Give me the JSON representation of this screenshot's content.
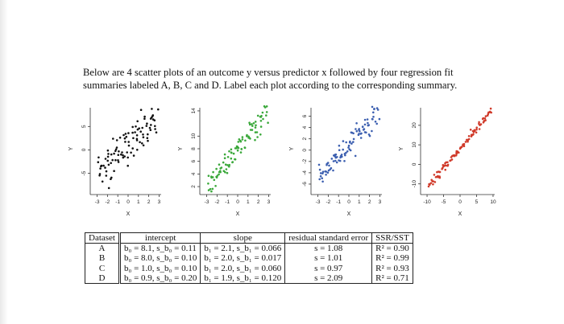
{
  "prompt": {
    "line1": "Below are 4 scatter plots of an outcome y versus predictor x followed by four regression fit",
    "line2": "summaries labeled A, B, C and D. Label each plot according to the corresponding summary."
  },
  "chart_data": [
    {
      "type": "scatter",
      "xlabel": "X",
      "ylabel": "Y",
      "xticks": [
        "-3",
        "-2",
        "-1",
        "0",
        "1",
        "2",
        "3"
      ],
      "yticks": [
        "-5",
        "0",
        "5"
      ],
      "xlim": [
        -3.2,
        3.2
      ],
      "ylim": [
        -8.5,
        9
      ],
      "intercept": 0.9,
      "slope": 1.9,
      "noise": 2.1,
      "color": "#111111"
    },
    {
      "type": "scatter",
      "xlabel": "X",
      "ylabel": "Y",
      "xticks": [
        "-3",
        "-2",
        "-1",
        "0",
        "1",
        "2",
        "3"
      ],
      "yticks": [
        "2",
        "4",
        "6",
        "8",
        "10",
        "14"
      ],
      "xlim": [
        -3.2,
        3.2
      ],
      "ylim": [
        1.5,
        14.5
      ],
      "intercept": 8.1,
      "slope": 2.1,
      "noise": 1.08,
      "color": "#3aa83a"
    },
    {
      "type": "scatter",
      "xlabel": "X",
      "ylabel": "Y",
      "xticks": [
        "-3",
        "-2",
        "-1",
        "0",
        "1",
        "2",
        "3"
      ],
      "yticks": [
        "-6",
        "-4",
        "-2",
        "0",
        "2",
        "4",
        "6"
      ],
      "xlim": [
        -3.2,
        3.2
      ],
      "ylim": [
        -7,
        7.5
      ],
      "intercept": 1.0,
      "slope": 2.0,
      "noise": 0.97,
      "color": "#3c5fb0"
    },
    {
      "type": "scatter",
      "xlabel": "X",
      "ylabel": "Y",
      "xticks": [
        "-10",
        "-5",
        "0",
        "5",
        "10"
      ],
      "yticks": [
        "-10",
        "0",
        "10",
        "20"
      ],
      "xlim": [
        -10.5,
        10.5
      ],
      "ylim": [
        -13,
        29
      ],
      "intercept": 8.0,
      "slope": 2.0,
      "noise": 1.01,
      "color": "#d03a2a"
    }
  ],
  "table": {
    "headers": [
      "Dataset",
      "intercept",
      "slope",
      "residual standard error",
      "SSR/SST"
    ],
    "rows": [
      {
        "dataset": "A",
        "intercept": "b₀ = 8.1, s_b₀ = 0.11",
        "slope": "b₁ = 2.1, s_b₁ = 0.066",
        "rse": "s = 1.08",
        "r2": "R² = 0.90"
      },
      {
        "dataset": "B",
        "intercept": "b₀ = 8.0, s_b₀ = 0.10",
        "slope": "b₁ = 2.0, s_b₁ = 0.017",
        "rse": "s = 1.01",
        "r2": "R² = 0.99"
      },
      {
        "dataset": "C",
        "intercept": "b₀ = 1.0, s_b₀ = 0.10",
        "slope": "b₁ = 2.0, s_b₁ = 0.060",
        "rse": "s = 0.97",
        "r2": "R² = 0.93"
      },
      {
        "dataset": "D",
        "intercept": "b₀ = 0.9, s_b₀ = 0.20",
        "slope": "b₁ = 1.9, s_b₁ = 0.120",
        "rse": "s = 2.09",
        "r2": "R² = 0.71"
      }
    ]
  }
}
